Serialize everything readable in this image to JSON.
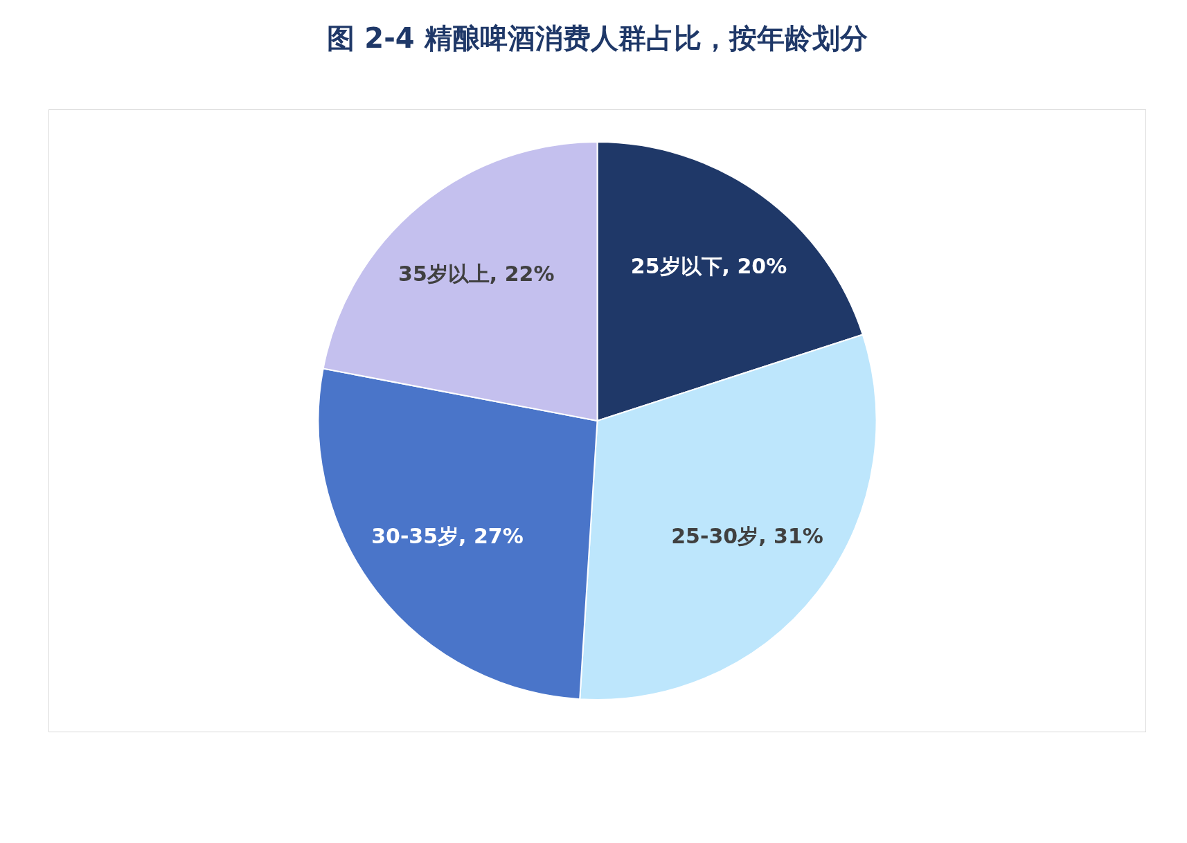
{
  "chart_data": {
    "type": "pie",
    "title": "图 2-4 精酿啤酒消费人群占比，按年龄划分",
    "categories": [
      "25岁以下",
      "25-30岁",
      "30-35岁",
      "35岁以上"
    ],
    "values": [
      20,
      31,
      27,
      22
    ],
    "colors": [
      "#1f3868",
      "#bde6fc",
      "#4a75c9",
      "#c4c0ee"
    ],
    "value_labels": [
      "20%",
      "31%",
      "27%",
      "22%"
    ],
    "legend": false
  }
}
